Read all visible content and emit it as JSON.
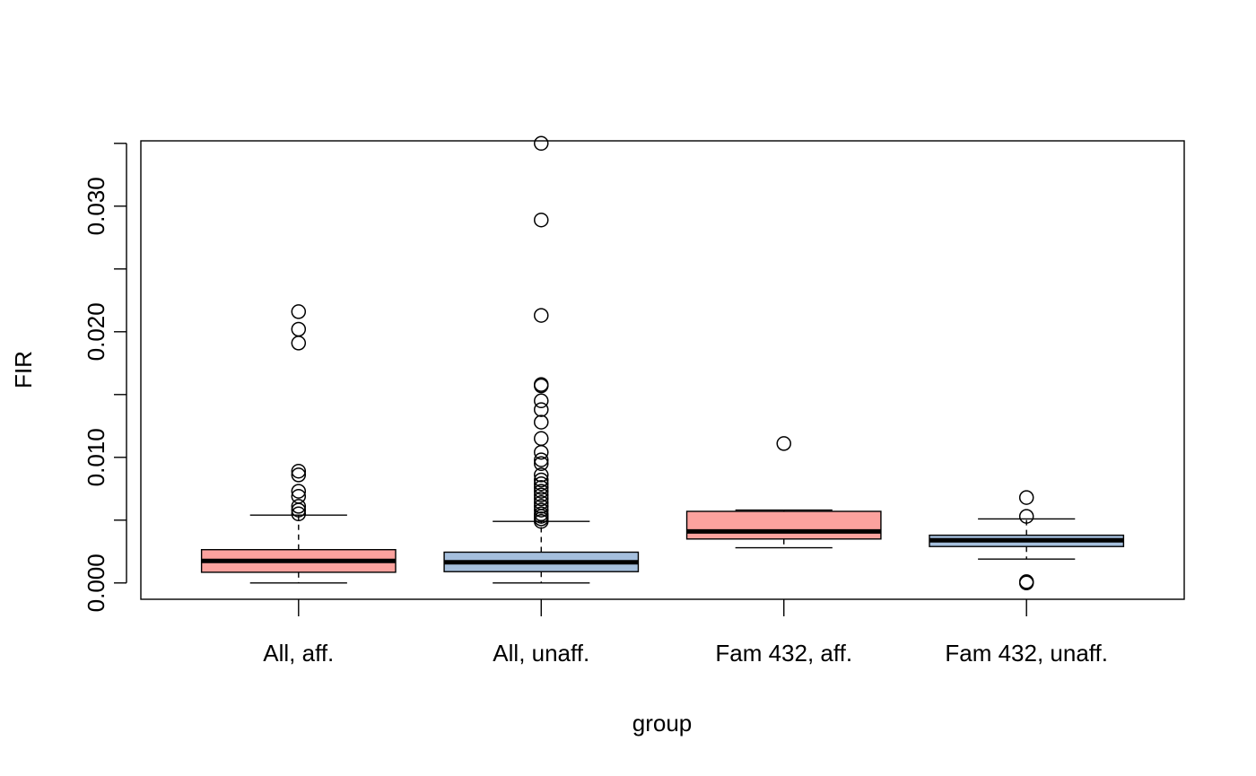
{
  "chart_data": {
    "type": "boxplot",
    "title": "",
    "xlabel": "group",
    "ylabel": "FIR",
    "ylim": [
      -0.0013,
      0.0352
    ],
    "yticks": [
      0.0,
      0.005,
      0.01,
      0.015,
      0.02,
      0.025,
      0.03,
      0.035
    ],
    "ytick_labels": [
      "0.000",
      "",
      "0.010",
      "",
      "0.020",
      "",
      "0.030",
      ""
    ],
    "categories": [
      "All, aff.",
      "All, unaff.",
      "Fam 432, aff.",
      "Fam 432, unaff."
    ],
    "grid": false,
    "legend": "none",
    "boxes": [
      {
        "name": "All, aff.",
        "color": "#FBA29E",
        "whisker_low": 0.0,
        "q1": 0.00085,
        "median": 0.00175,
        "q3": 0.00265,
        "whisker_high": 0.0054,
        "outliers": [
          0.0055,
          0.0058,
          0.0061,
          0.0069,
          0.0073,
          0.0086,
          0.0089,
          0.0191,
          0.0202,
          0.0216
        ]
      },
      {
        "name": "All, unaff.",
        "color": "#A5BFDD",
        "whisker_low": 0.0,
        "q1": 0.0009,
        "median": 0.00165,
        "q3": 0.00245,
        "whisker_high": 0.0049,
        "outliers": [
          0.0049,
          0.0051,
          0.0053,
          0.0055,
          0.0058,
          0.0061,
          0.0064,
          0.0067,
          0.007,
          0.0073,
          0.0076,
          0.0079,
          0.0082,
          0.0086,
          0.0095,
          0.0098,
          0.0104,
          0.0115,
          0.0128,
          0.0138,
          0.0145,
          0.0157,
          0.0158,
          0.0213,
          0.0289,
          0.035
        ]
      },
      {
        "name": "Fam 432, aff.",
        "color": "#FBA29E",
        "whisker_low": 0.0028,
        "q1": 0.0035,
        "median": 0.0041,
        "q3": 0.0057,
        "whisker_high": 0.0058,
        "outliers": [
          0.0111
        ]
      },
      {
        "name": "Fam 432, unaff.",
        "color": "#A5BFDD",
        "whisker_low": 0.0019,
        "q1": 0.0029,
        "median": 0.0034,
        "q3": 0.0038,
        "whisker_high": 0.0051,
        "outliers": [
          0.0,
          0.0001,
          0.0053,
          0.0068
        ]
      }
    ]
  }
}
